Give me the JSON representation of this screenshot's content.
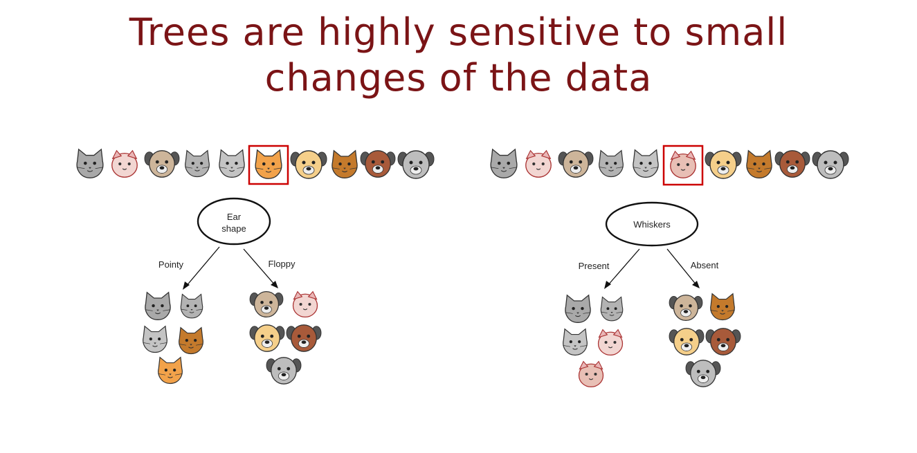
{
  "slide": {
    "title_line1": "Trees are highly sensitive to small",
    "title_line2": "changes of the data",
    "title_color": "#7b1416"
  },
  "left_tree": {
    "root_label_line1": "Ear",
    "root_label_line2": "shape",
    "left_branch_label": "Pointy",
    "right_branch_label": "Floppy",
    "highlighted_animal": "orange-cat-icon",
    "highlight_color": "#cc0000"
  },
  "right_tree": {
    "root_label": "Whiskers",
    "left_branch_label": "Present",
    "right_branch_label": "Absent",
    "highlighted_animal": "pink-cat-icon",
    "highlight_color": "#cc0000"
  }
}
